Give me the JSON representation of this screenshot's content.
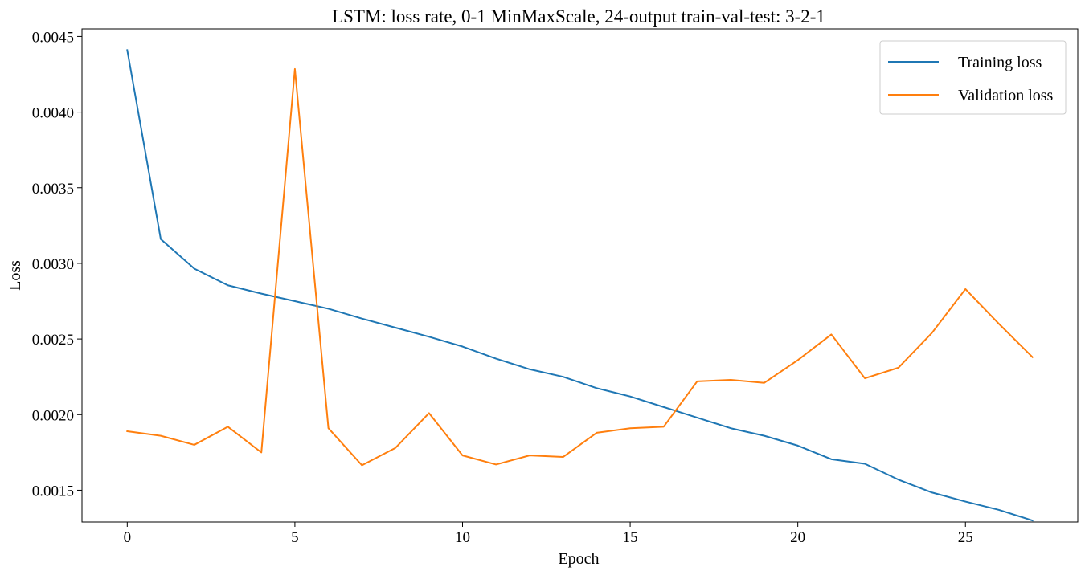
{
  "chart_data": {
    "type": "line",
    "title": "LSTM: loss rate, 0-1 MinMaxScale, 24-output train-val-test: 3-2-1",
    "xlabel": "Epoch",
    "ylabel": "Loss",
    "xlim": [
      -1.35,
      28.35
    ],
    "ylim": [
      0.00129,
      0.00455
    ],
    "x_ticks": [
      0,
      5,
      10,
      15,
      20,
      25
    ],
    "y_ticks": [
      0.0015,
      0.002,
      0.0025,
      0.003,
      0.0035,
      0.004,
      0.0045
    ],
    "grid": false,
    "legend_position": "top-right",
    "x": [
      0,
      1,
      2,
      3,
      4,
      5,
      6,
      7,
      8,
      9,
      10,
      11,
      12,
      13,
      14,
      15,
      16,
      17,
      18,
      19,
      20,
      21,
      22,
      23,
      24,
      25,
      26,
      27
    ],
    "series": [
      {
        "name": "Training loss",
        "color": "#1f77b4",
        "values": [
          0.00441,
          0.00316,
          0.002965,
          0.002855,
          0.0028,
          0.00275,
          0.0027,
          0.002635,
          0.002575,
          0.002515,
          0.00245,
          0.00237,
          0.0023,
          0.00225,
          0.002175,
          0.00212,
          0.00205,
          0.00198,
          0.00191,
          0.00186,
          0.001795,
          0.001705,
          0.001675,
          0.00157,
          0.001485,
          0.001425,
          0.00137,
          0.0013
        ]
      },
      {
        "name": "Validation loss",
        "color": "#ff7f0e",
        "values": [
          0.00189,
          0.00186,
          0.0018,
          0.00192,
          0.00175,
          0.004285,
          0.00191,
          0.001665,
          0.00178,
          0.00201,
          0.00173,
          0.00167,
          0.00173,
          0.00172,
          0.00188,
          0.00191,
          0.00192,
          0.00222,
          0.00223,
          0.00221,
          0.00236,
          0.00253,
          0.00224,
          0.00231,
          0.00254,
          0.00283,
          0.0026,
          0.00238
        ]
      }
    ]
  }
}
